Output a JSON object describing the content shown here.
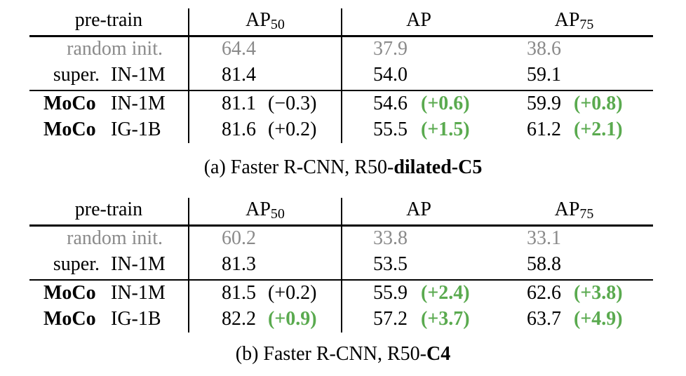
{
  "tables": [
    {
      "header": {
        "pretrain": "pre-train",
        "ap50": "AP",
        "ap50_sub": "50",
        "ap": "AP",
        "ap75": "AP",
        "ap75_sub": "75"
      },
      "rows": [
        {
          "method": "",
          "data": "random init.",
          "ap50": "64.4",
          "ap50_delta": "",
          "ap": "37.9",
          "ap_delta": "",
          "ap75": "38.6",
          "ap75_delta": ""
        },
        {
          "method": "super.",
          "data": "IN-1M",
          "ap50": "81.4",
          "ap50_delta": "",
          "ap": "54.0",
          "ap_delta": "",
          "ap75": "59.1",
          "ap75_delta": ""
        },
        {
          "method": "MoCo",
          "data": "IN-1M",
          "ap50": "81.1",
          "ap50_delta": "(−0.3)",
          "ap": "54.6",
          "ap_delta": "(+0.6)",
          "ap75": "59.9",
          "ap75_delta": "(+0.8)"
        },
        {
          "method": "MoCo",
          "data": "IG-1B",
          "ap50": "81.6",
          "ap50_delta": "(+0.2)",
          "ap": "55.5",
          "ap_delta": "(+1.5)",
          "ap75": "61.2",
          "ap75_delta": "(+2.1)"
        }
      ],
      "caption_prefix": "(a) Faster R-CNN, R50-",
      "caption_bold": "dilated-C5"
    },
    {
      "header": {
        "pretrain": "pre-train",
        "ap50": "AP",
        "ap50_sub": "50",
        "ap": "AP",
        "ap75": "AP",
        "ap75_sub": "75"
      },
      "rows": [
        {
          "method": "",
          "data": "random init.",
          "ap50": "60.2",
          "ap50_delta": "",
          "ap": "33.8",
          "ap_delta": "",
          "ap75": "33.1",
          "ap75_delta": ""
        },
        {
          "method": "super.",
          "data": "IN-1M",
          "ap50": "81.3",
          "ap50_delta": "",
          "ap": "53.5",
          "ap_delta": "",
          "ap75": "58.8",
          "ap75_delta": ""
        },
        {
          "method": "MoCo",
          "data": "IN-1M",
          "ap50": "81.5",
          "ap50_delta": "(+0.2)",
          "ap": "55.9",
          "ap_delta": "(+2.4)",
          "ap75": "62.6",
          "ap75_delta": "(+3.8)"
        },
        {
          "method": "MoCo",
          "data": "IG-1B",
          "ap50": "82.2",
          "ap50_delta": "(+0.9)",
          "ap": "57.2",
          "ap_delta": "(+3.7)",
          "ap75": "63.7",
          "ap75_delta": "(+4.9)"
        }
      ],
      "caption_prefix": "(b) Faster R-CNN, R50-",
      "caption_bold": "C4"
    }
  ]
}
